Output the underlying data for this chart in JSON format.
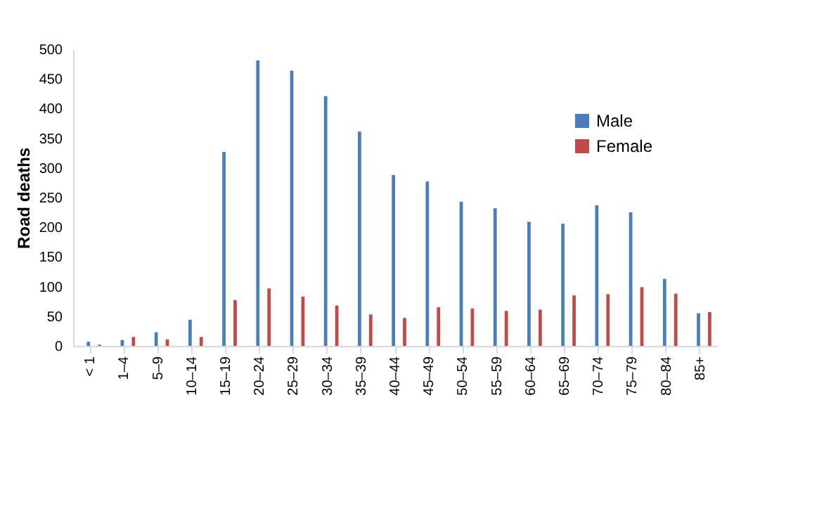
{
  "chart_data": {
    "type": "bar",
    "ylabel": "Road deaths",
    "categories": [
      "< 1",
      "1–4",
      "5–9",
      "10–14",
      "15–19",
      "20–24",
      "25–29",
      "30–34",
      "35–39",
      "40–44",
      "45–49",
      "50–54",
      "55–59",
      "60–64",
      "65–69",
      "70–74",
      "75–79",
      "80–84",
      "85+"
    ],
    "series": [
      {
        "name": "Male",
        "color": "#4a7ebb",
        "values": [
          7,
          10,
          23,
          44,
          327,
          481,
          464,
          421,
          361,
          288,
          277,
          243,
          232,
          209,
          206,
          237,
          225,
          113,
          55
        ]
      },
      {
        "name": "Female",
        "color": "#be4b48",
        "values": [
          2,
          15,
          11,
          15,
          77,
          97,
          83,
          68,
          53,
          47,
          65,
          63,
          59,
          61,
          85,
          87,
          99,
          88,
          57
        ]
      }
    ],
    "ylim": [
      0,
      500
    ],
    "yticks": [
      0,
      50,
      100,
      150,
      200,
      250,
      300,
      350,
      400,
      450,
      500
    ],
    "grid": false,
    "legend": "top right"
  }
}
